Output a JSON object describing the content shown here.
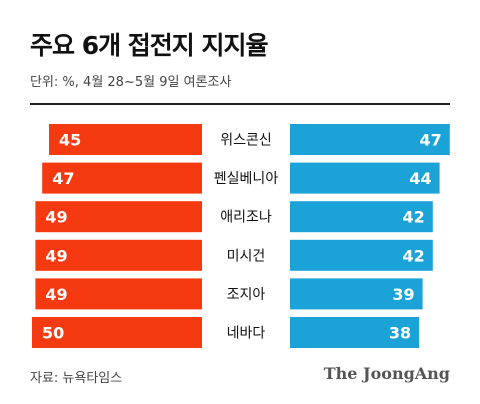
{
  "title": "주요 6개 접전지 지지율",
  "subtitle": "단위: %, 4월 28~5월 9일 여론조사",
  "source": "자료: 뉴욕타임스",
  "logo": "The JoongAng",
  "colors": {
    "left_series": "#f53a12",
    "right_series": "#1ba3d8",
    "label_text": "#ffffff",
    "divider": "#222222"
  },
  "chart_data": {
    "type": "bar",
    "orientation": "diverging-horizontal",
    "categories": [
      "위스콘신",
      "펜실베니아",
      "애리조나",
      "미시건",
      "조지아",
      "네바다"
    ],
    "series": [
      {
        "values": [
          45,
          47,
          49,
          49,
          49,
          50
        ]
      },
      {
        "values": [
          47,
          44,
          42,
          42,
          39,
          38
        ]
      }
    ],
    "title": "주요 6개 접전지 지지율",
    "subtitle": "단위: %, 4월 28~5월 9일 여론조사",
    "legend": "none",
    "grid": false
  }
}
